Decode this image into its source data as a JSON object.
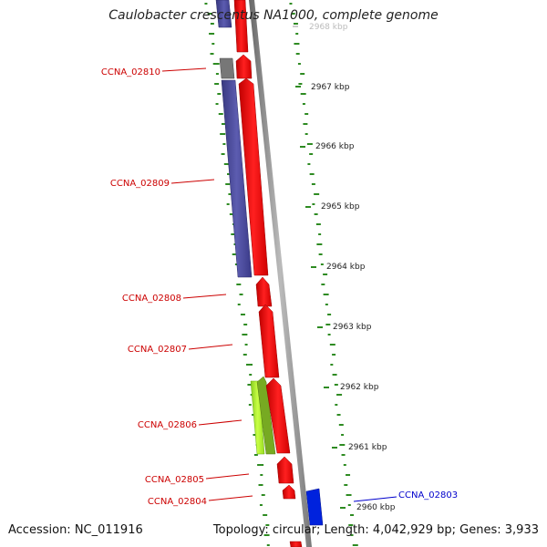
{
  "title": "Caulobacter crescentus NA1000, complete genome",
  "footer": {
    "accession": "Accession: NC_011916",
    "summary": "Topology: circular; Length: 4,042,929 bp; Genes: 3,933"
  },
  "ruler_ticks": [
    {
      "label": "2968 kbp",
      "faded": true
    },
    {
      "label": "2967 kbp"
    },
    {
      "label": "2966 kbp"
    },
    {
      "label": "2965 kbp"
    },
    {
      "label": "2964 kbp"
    },
    {
      "label": "2963 kbp"
    },
    {
      "label": "2962 kbp"
    },
    {
      "label": "2961 kbp"
    },
    {
      "label": "2960 kbp"
    }
  ],
  "gene_labels": [
    {
      "text": "CCNA_02810",
      "color": "#cc0000"
    },
    {
      "text": "CCNA_02809",
      "color": "#cc0000"
    },
    {
      "text": "CCNA_02808",
      "color": "#cc0000"
    },
    {
      "text": "CCNA_02807",
      "color": "#cc0000"
    },
    {
      "text": "CCNA_02806",
      "color": "#cc0000"
    },
    {
      "text": "CCNA_02805",
      "color": "#cc0000"
    },
    {
      "text": "CCNA_02804",
      "color": "#cc0000"
    },
    {
      "text": "CCNA_02803",
      "color": "#0000cc"
    }
  ],
  "colors": {
    "forward_cds": "#ff0000",
    "reverse_cds": "#4a4aa0",
    "backbone": "#8a8a8a",
    "gc_dots": "#2e8b22",
    "highlight_cds": "#aaee33",
    "other_cds": "#0022dd"
  }
}
